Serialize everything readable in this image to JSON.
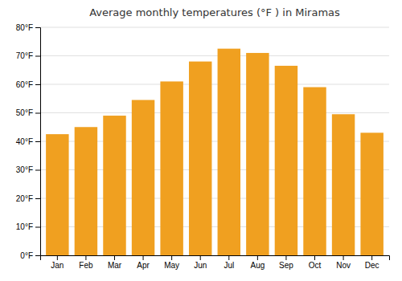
{
  "chart_data": {
    "type": "bar",
    "title": "Average monthly temperatures (°F ) in Miramas",
    "categories": [
      "Jan",
      "Feb",
      "Mar",
      "Apr",
      "May",
      "Jun",
      "Jul",
      "Aug",
      "Sep",
      "Oct",
      "Nov",
      "Dec"
    ],
    "values": [
      42.5,
      45.0,
      49.0,
      54.5,
      61.0,
      68.0,
      72.5,
      71.0,
      66.5,
      59.0,
      49.5,
      43.0
    ],
    "color": "#F0A020",
    "ylim": [
      0,
      80
    ],
    "yticks": [
      {
        "value": 0,
        "label": "0°F"
      },
      {
        "value": 10,
        "label": "10°F"
      },
      {
        "value": 20,
        "label": "20°F"
      },
      {
        "value": 30,
        "label": "30°F"
      },
      {
        "value": 40,
        "label": "40°F"
      },
      {
        "value": 50,
        "label": "50°F"
      },
      {
        "value": 60,
        "label": "60°F"
      },
      {
        "value": 70,
        "label": "70°F"
      },
      {
        "value": 80,
        "label": "80°F"
      }
    ],
    "grid": true
  }
}
